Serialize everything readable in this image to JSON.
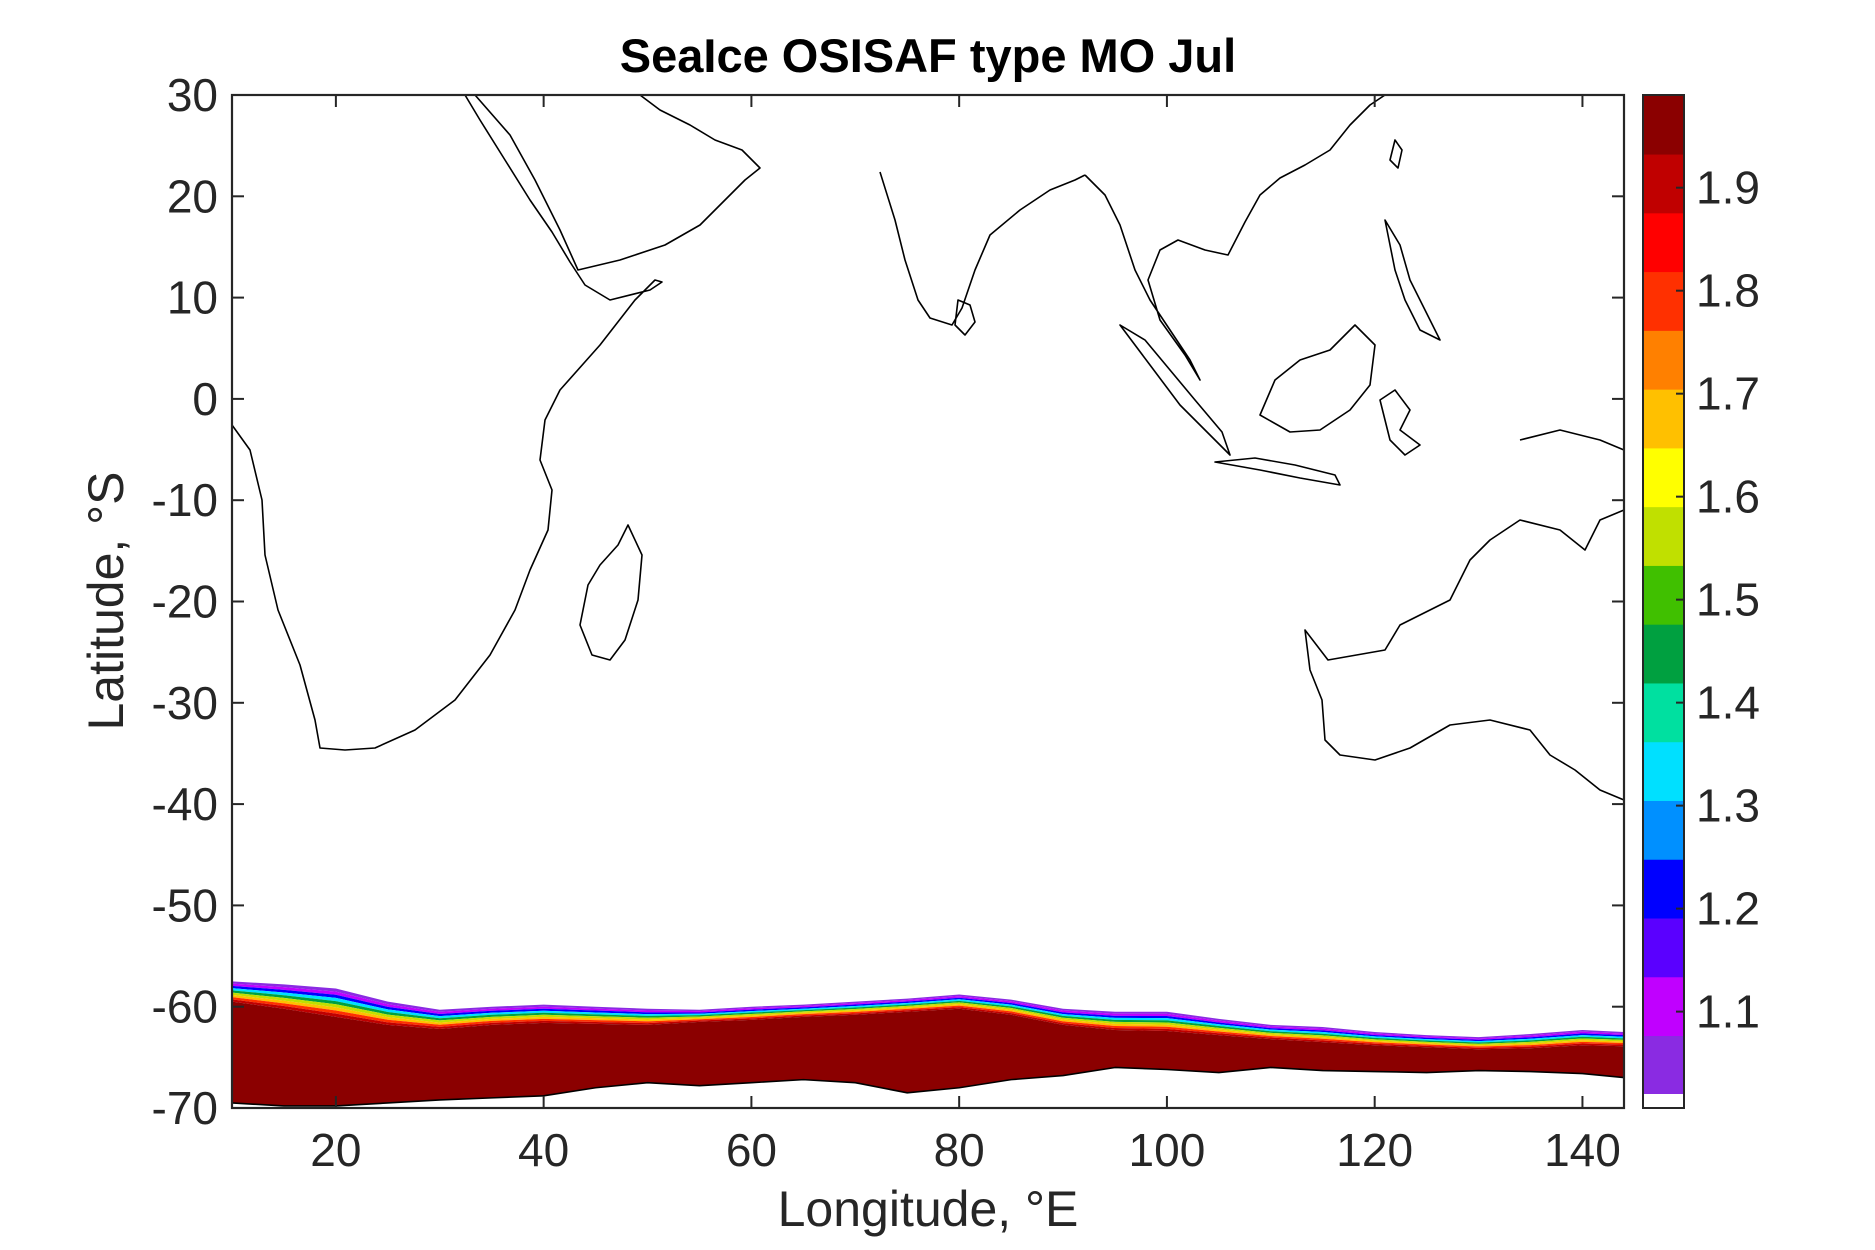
{
  "chart_data": {
    "type": "heatmap",
    "title": "SeaIce OSISAF type MO Jul",
    "xlabel": "Longitude, °E",
    "ylabel": "Latitude, °S",
    "xlim": [
      10,
      144
    ],
    "ylim": [
      -70,
      30
    ],
    "xticks": [
      "20",
      "40",
      "60",
      "80",
      "100",
      "120",
      "140"
    ],
    "xtick_values": [
      20,
      40,
      60,
      80,
      100,
      120,
      140
    ],
    "yticks": [
      "30",
      "20",
      "10",
      "0",
      "-10",
      "-20",
      "-30",
      "-40",
      "-50",
      "-60",
      "-70"
    ],
    "ytick_values": [
      30,
      20,
      10,
      0,
      -10,
      -20,
      -30,
      -40,
      -50,
      -60,
      -70
    ],
    "colorbar": {
      "min": 1.02,
      "max": 1.99,
      "ticks": [
        "1.1",
        "1.2",
        "1.3",
        "1.4",
        "1.5",
        "1.6",
        "1.7",
        "1.8",
        "1.9"
      ],
      "tick_values": [
        1.1,
        1.2,
        1.3,
        1.4,
        1.5,
        1.6,
        1.7,
        1.8,
        1.9
      ],
      "colors": [
        "#8a2be2",
        "#c000ff",
        "#5a00ff",
        "#0000ff",
        "#0090ff",
        "#00e0ff",
        "#00e0a0",
        "#00a040",
        "#40c000",
        "#c0e000",
        "#ffff00",
        "#ffc000",
        "#ff8000",
        "#ff3000",
        "#ff0000",
        "#c00000",
        "#8b0000"
      ],
      "nodata_color": "#ffffff"
    },
    "ice_edge": {
      "lon": [
        10,
        15,
        20,
        25,
        30,
        35,
        40,
        45,
        50,
        55,
        60,
        65,
        70,
        75,
        80,
        85,
        90,
        95,
        100,
        105,
        110,
        115,
        120,
        125,
        130,
        135,
        140,
        144
      ],
      "edge_lat": [
        -57.5,
        -57.8,
        -58.2,
        -59.5,
        -60.3,
        -60.0,
        -59.8,
        -60.0,
        -60.2,
        -60.3,
        -60.0,
        -59.8,
        -59.5,
        -59.2,
        -58.8,
        -59.3,
        -60.2,
        -60.5,
        -60.5,
        -61.2,
        -61.8,
        -62.0,
        -62.5,
        -62.8,
        -63.0,
        -62.7,
        -62.3,
        -62.5
      ],
      "core_north_lat": [
        -59.5,
        -60.2,
        -61.0,
        -61.8,
        -62.2,
        -61.8,
        -61.6,
        -61.7,
        -61.8,
        -61.5,
        -61.3,
        -61.0,
        -60.8,
        -60.5,
        -60.2,
        -60.8,
        -61.8,
        -62.3,
        -62.4,
        -62.8,
        -63.2,
        -63.5,
        -63.8,
        -64.0,
        -64.2,
        -64.1,
        -63.8,
        -63.9
      ],
      "coast_lat": [
        -69.5,
        -69.8,
        -69.8,
        -69.5,
        -69.2,
        -69.0,
        -68.8,
        -68.0,
        -67.5,
        -67.8,
        -67.5,
        -67.2,
        -67.5,
        -68.5,
        -68.0,
        -67.2,
        -66.8,
        -66.0,
        -66.2,
        -66.5,
        -66.0,
        -66.3,
        -66.4,
        -66.5,
        -66.3,
        -66.4,
        -66.6,
        -67.0
      ]
    }
  }
}
